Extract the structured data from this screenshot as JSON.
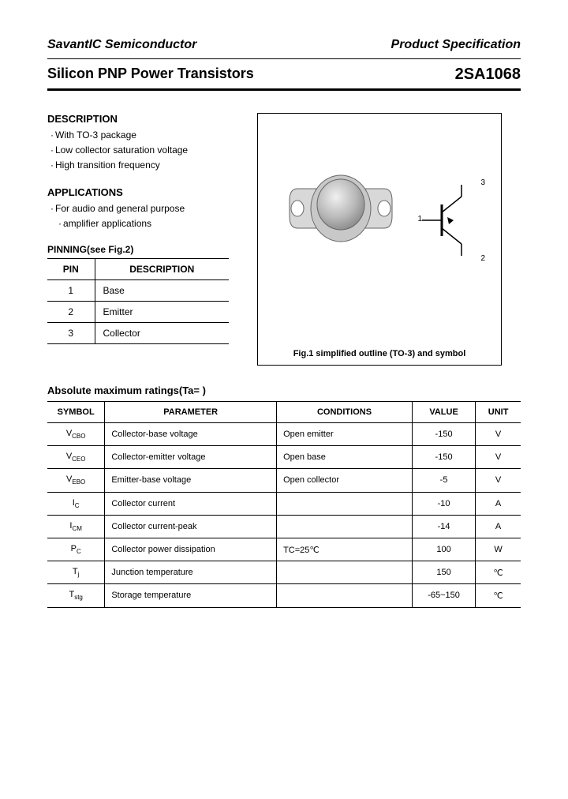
{
  "header": {
    "company": "SavantIC Semiconductor",
    "doc_type": "Product Specification"
  },
  "title": {
    "product_line": "Silicon PNP Power Transistors",
    "part_number": "2SA1068"
  },
  "description": {
    "heading": "DESCRIPTION",
    "items": [
      "With TO-3 package",
      "Low collector saturation voltage",
      "High transition frequency"
    ]
  },
  "applications": {
    "heading": "APPLICATIONS",
    "line1": "For audio and general purpose",
    "line2": "amplifier applications"
  },
  "pinning": {
    "heading": "PINNING(see Fig.2)",
    "col_pin": "PIN",
    "col_desc": "DESCRIPTION",
    "rows": [
      {
        "pin": "1",
        "desc": "Base"
      },
      {
        "pin": "2",
        "desc": "Emitter"
      },
      {
        "pin": "3",
        "desc": "Collector"
      }
    ]
  },
  "figure": {
    "caption": "Fig.1 simplified outline (TO-3) and symbol",
    "pin_labels": {
      "p1": "1",
      "p2": "2",
      "p3": "3"
    }
  },
  "ratings": {
    "heading": "Absolute maximum ratings(Ta=   )",
    "columns": {
      "symbol": "SYMBOL",
      "parameter": "PARAMETER",
      "conditions": "CONDITIONS",
      "value": "VALUE",
      "unit": "UNIT"
    },
    "rows": [
      {
        "sym": "V",
        "sub": "CBO",
        "param": "Collector-base voltage",
        "cond": "Open emitter",
        "val": "-150",
        "unit": "V"
      },
      {
        "sym": "V",
        "sub": "CEO",
        "param": "Collector-emitter voltage",
        "cond": "Open base",
        "val": "-150",
        "unit": "V"
      },
      {
        "sym": "V",
        "sub": "EBO",
        "param": "Emitter-base voltage",
        "cond": "Open collector",
        "val": "-5",
        "unit": "V"
      },
      {
        "sym": "I",
        "sub": "C",
        "param": "Collector current",
        "cond": "",
        "val": "-10",
        "unit": "A"
      },
      {
        "sym": "I",
        "sub": "CM",
        "param": "Collector current-peak",
        "cond": "",
        "val": "-14",
        "unit": "A"
      },
      {
        "sym": "P",
        "sub": "C",
        "param": "Collector power dissipation",
        "cond": "TC=25℃",
        "val": "100",
        "unit": "W"
      },
      {
        "sym": "T",
        "sub": "j",
        "param": "Junction temperature",
        "cond": "",
        "val": "150",
        "unit": "℃"
      },
      {
        "sym": "T",
        "sub": "stg",
        "param": "Storage temperature",
        "cond": "",
        "val": "-65~150",
        "unit": "℃"
      }
    ]
  },
  "colors": {
    "text": "#000000",
    "background": "#ffffff",
    "border": "#000000"
  }
}
